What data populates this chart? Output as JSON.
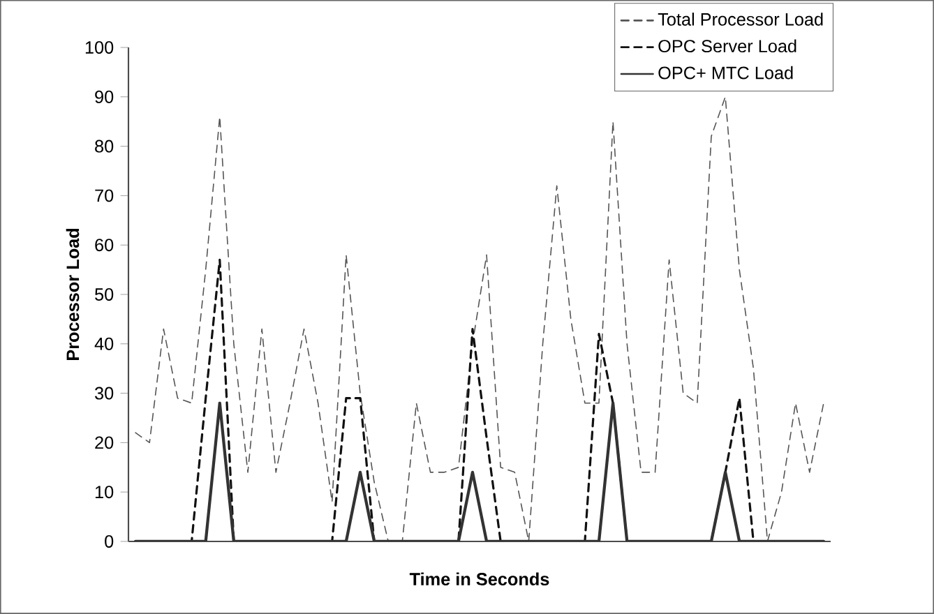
{
  "chart_data": {
    "type": "line",
    "xlabel": "Time  in Seconds",
    "ylabel": "Processor Load",
    "categories": [
      null,
      null,
      null,
      null,
      null,
      null,
      null,
      null,
      null,
      null,
      null,
      null,
      null,
      null,
      null,
      null,
      null,
      null,
      null,
      null,
      null,
      null,
      null,
      null,
      null,
      null,
      null,
      null,
      null,
      null,
      null,
      null,
      null,
      null,
      null,
      null,
      null,
      null,
      null,
      null,
      null,
      null,
      null,
      null,
      null,
      null,
      null,
      null,
      null,
      null
    ],
    "series": [
      {
        "name": "Total Processor Load",
        "color": "#555555",
        "line_style": "dashed",
        "values": [
          22,
          20,
          43,
          29,
          28,
          55,
          86,
          40,
          14,
          43,
          14,
          28,
          43,
          28,
          8,
          58,
          30,
          12,
          0,
          0,
          28,
          14,
          14,
          15,
          40,
          58,
          15,
          14,
          0,
          40,
          72,
          45,
          28,
          28,
          85,
          40,
          14,
          14,
          57,
          30,
          28,
          82,
          90,
          55,
          35,
          0,
          10,
          28,
          14,
          28
        ]
      },
      {
        "name": "OPC Server Load",
        "color": "#111111",
        "line_style": "dashed",
        "values": [
          0,
          0,
          0,
          0,
          0,
          29,
          57,
          0,
          0,
          0,
          0,
          0,
          0,
          0,
          0,
          29,
          29,
          0,
          0,
          0,
          0,
          0,
          0,
          0,
          43,
          21,
          0,
          0,
          0,
          0,
          0,
          0,
          0,
          42,
          28,
          0,
          0,
          0,
          0,
          0,
          0,
          0,
          14,
          29,
          0,
          0,
          0,
          0,
          0,
          0
        ]
      },
      {
        "name": "OPC+ MTC Load",
        "color": "#333333",
        "line_style": "solid",
        "values": [
          0,
          0,
          0,
          0,
          0,
          0,
          28,
          0,
          0,
          0,
          0,
          0,
          0,
          0,
          0,
          0,
          14,
          0,
          0,
          0,
          0,
          0,
          0,
          0,
          14,
          0,
          0,
          0,
          0,
          0,
          0,
          0,
          0,
          0,
          28,
          0,
          0,
          0,
          0,
          0,
          0,
          0,
          14,
          0,
          0,
          0,
          0,
          0,
          0,
          0
        ]
      }
    ],
    "ylim": [
      0,
      100
    ],
    "yticks": [
      0,
      10,
      20,
      30,
      40,
      50,
      60,
      70,
      80,
      90,
      100
    ],
    "grid": false,
    "legend": "top right"
  }
}
